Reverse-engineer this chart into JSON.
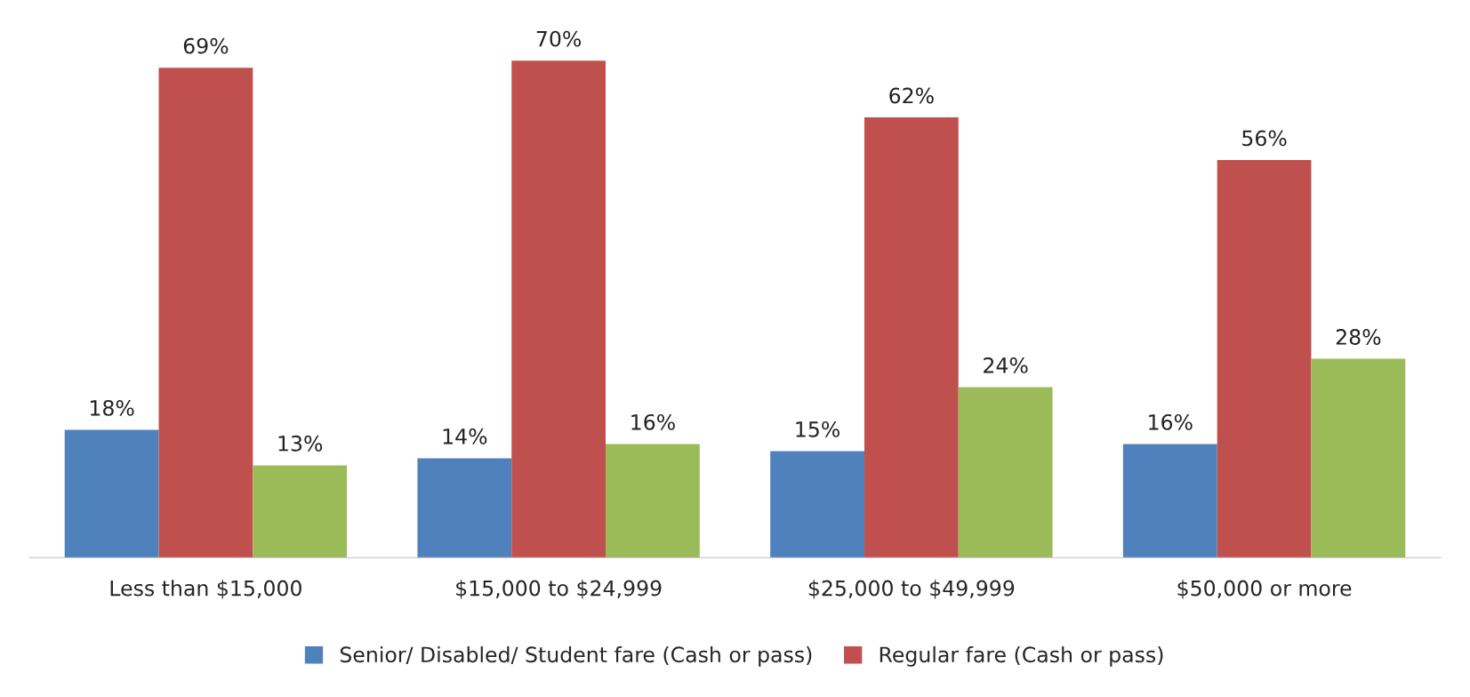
{
  "chart_data": {
    "type": "bar",
    "categories": [
      "Less than $15,000",
      "$15,000 to $24,999",
      "$25,000 to $49,999",
      "$50,000 or more"
    ],
    "series": [
      {
        "name": "Senior/ Disabled/ Student fare (Cash or pass)",
        "color": "#4f81bd",
        "values": [
          18,
          14,
          15,
          16
        ],
        "value_labels": [
          "18%",
          "14%",
          "15%",
          "16%"
        ]
      },
      {
        "name": "Regular fare (Cash or pass)",
        "color": "#c0504d",
        "values": [
          69,
          70,
          62,
          56
        ],
        "value_labels": [
          "69%",
          "70%",
          "62%",
          "56%"
        ]
      },
      {
        "color": "#9bbb59",
        "values": [
          13,
          16,
          24,
          28
        ],
        "value_labels": [
          "13%",
          "16%",
          "24%",
          "28%"
        ]
      }
    ],
    "legend": "bottom",
    "tick_labels": "x",
    "grid": false
  }
}
